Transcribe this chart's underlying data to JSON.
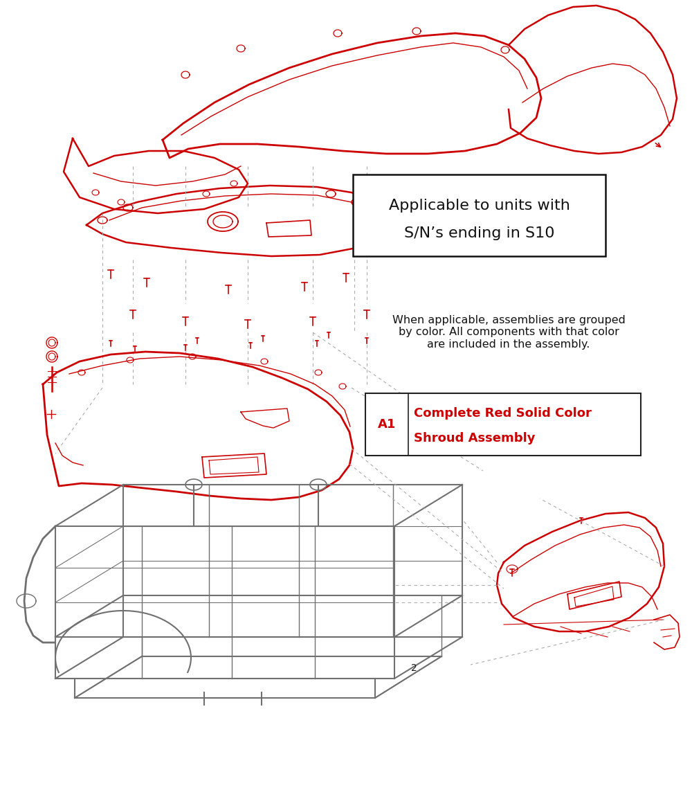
{
  "background_color": "#ffffff",
  "red_color": "#cc0000",
  "frame_color": "#707070",
  "dark_color": "#1a1a1a",
  "box1_text_line1": "Applicable to units with",
  "box1_text_line2": "S/N’s ending in S10",
  "box2_desc": "When applicable, assemblies are grouped\nby color. All components with that color\nare included in the assembly.",
  "legend_label": "A1",
  "legend_text_line1": "Complete Red Solid Color",
  "legend_text_line2": "Shroud Assembly",
  "fig_width": 10.0,
  "fig_height": 11.67,
  "dpi": 100
}
